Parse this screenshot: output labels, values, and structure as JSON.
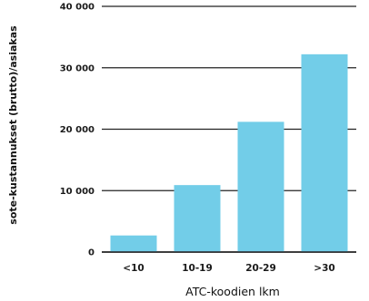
{
  "chart_data": {
    "type": "bar",
    "categories": [
      "<10",
      "10-19",
      "20-29",
      ">30"
    ],
    "values": [
      2700,
      10900,
      21200,
      32200
    ],
    "xlabel": "ATC-koodien lkm",
    "ylabel": "sote-kustannukset (brutto)/asiakas",
    "ylim": [
      0,
      40000
    ],
    "yticks": [
      0,
      10000,
      20000,
      30000,
      40000
    ],
    "ytick_labels": [
      "0",
      "10 000",
      "20 000",
      "30 000",
      "40 000"
    ],
    "grid": true,
    "legend": "none",
    "bar_color": "#72cde8",
    "grid_color": "#222222"
  }
}
